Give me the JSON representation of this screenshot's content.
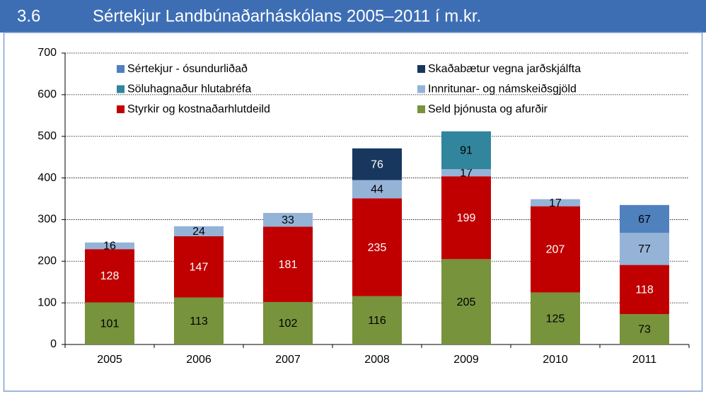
{
  "header": {
    "number": "3.6"
  },
  "chart_data": {
    "type": "stacked_bar",
    "title": "Sértekjur Landbúnaðarháskólans 2005–2011 í m.kr.",
    "categories": [
      "2005",
      "2006",
      "2007",
      "2008",
      "2009",
      "2010",
      "2011"
    ],
    "series": [
      {
        "name": "Seld þjónusta og afurðir",
        "color": "#77933c",
        "values": [
          101,
          113,
          102,
          116,
          205,
          125,
          73
        ]
      },
      {
        "name": "Styrkir og kostnaðarhlutdeild",
        "color": "#c00000",
        "values": [
          128,
          147,
          181,
          235,
          199,
          207,
          118
        ]
      },
      {
        "name": "Innritunar- og námskeiðsgjöld",
        "color": "#95b3d7",
        "values": [
          16,
          24,
          33,
          44,
          17,
          17,
          77
        ]
      },
      {
        "name": "Söluhagnaður hlutabréfa",
        "color": "#31859c",
        "values": [
          null,
          null,
          null,
          null,
          91,
          null,
          null
        ]
      },
      {
        "name": "Skaðabætur vegna jarðskjálfta",
        "color": "#17375e",
        "values": [
          null,
          null,
          null,
          76,
          null,
          null,
          null
        ]
      },
      {
        "name": "Sértekjur - ósundurliðað",
        "color": "#4f81bd",
        "values": [
          null,
          null,
          null,
          null,
          null,
          null,
          67
        ]
      }
    ],
    "ylim": [
      0,
      700
    ],
    "yticks": [
      0,
      100,
      200,
      300,
      400,
      500,
      600,
      700
    ],
    "grid": true,
    "legend": "top"
  }
}
